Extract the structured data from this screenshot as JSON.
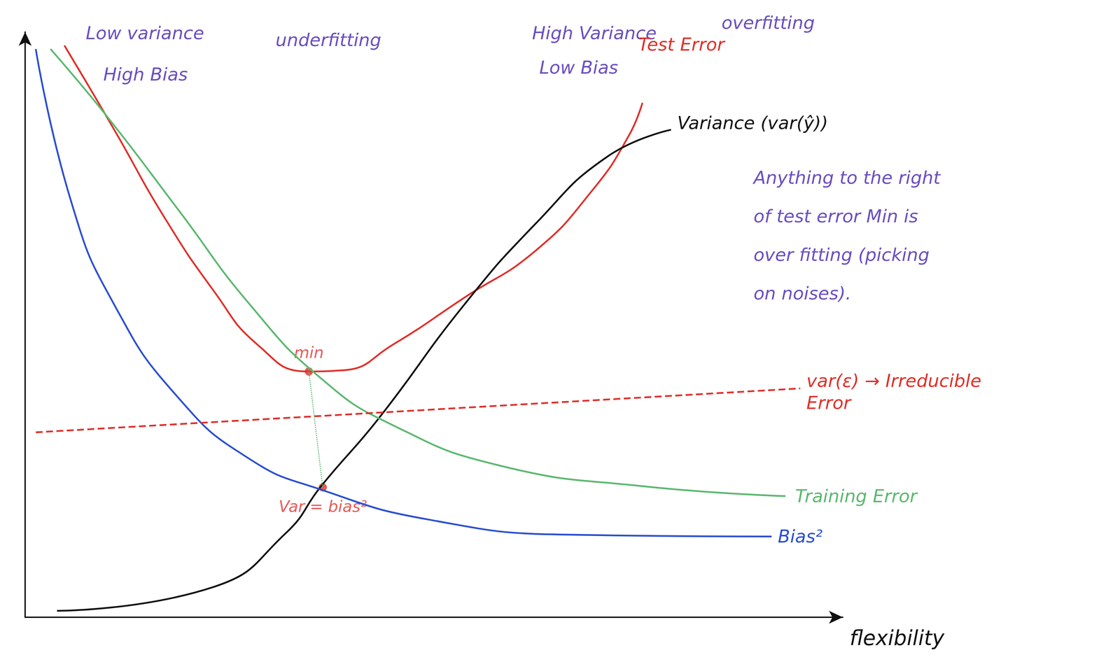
{
  "chart_data": {
    "type": "line",
    "xlabel": "flexibility",
    "xlim": [
      0,
      100
    ],
    "ylim": [
      0,
      100
    ],
    "tick_labels": false,
    "grid": false,
    "series": [
      {
        "name": "Test Error",
        "color": "#e0302a",
        "x": [
          4.8,
          10.9,
          17.0,
          23.1,
          28.4,
          34.5,
          38.9,
          45.0,
          53.7,
          62.4,
          69.4,
          73.8,
          75.5
        ],
        "values": [
          97.7,
          83.3,
          68.4,
          55.7,
          46.6,
          42.0,
          42.2,
          46.6,
          54.6,
          62.6,
          73.0,
          82.2,
          87.9
        ]
      },
      {
        "name": "Variance (var(ŷ))",
        "color": "#111111",
        "x": [
          3.9,
          23.1,
          31.9,
          36.2,
          43.2,
          53.7,
          62.4,
          71.2,
          79.0
        ],
        "values": [
          1.1,
          5.2,
          14.4,
          22.4,
          33.9,
          53.4,
          67.2,
          78.7,
          83.3
        ]
      },
      {
        "name": "Bias²",
        "color": "#2a4fd0",
        "x": [
          1.3,
          5.7,
          10.9,
          18.8,
          27.5,
          36.2,
          49.3,
          66.8,
          91.3
        ],
        "values": [
          97.1,
          70.7,
          53.4,
          37.4,
          27.0,
          21.8,
          16.7,
          14.1,
          13.8
        ]
      },
      {
        "name": "Training Error",
        "color": "#5cb870",
        "x": [
          3.1,
          10.0,
          18.8,
          27.5,
          36.2,
          45.0,
          58.1,
          75.5,
          93.0
        ],
        "values": [
          97.1,
          85.6,
          69.5,
          53.4,
          40.8,
          32.8,
          25.9,
          22.4,
          20.7
        ]
      },
      {
        "name": "var(ε) → Irreducible Error",
        "color": "#e0302a",
        "line_style": "dashed",
        "x": [
          1.3,
          94.8
        ],
        "values": [
          31.6,
          39.1
        ]
      }
    ],
    "points": [
      {
        "label": "min",
        "x": 34.7,
        "y": 42.0,
        "color": "#e0302a"
      },
      {
        "label": "Var = bias²",
        "x": 36.4,
        "y": 22.2,
        "color": "#e0302a"
      }
    ],
    "annotations": [
      {
        "text": "Low variance",
        "color": "#6a4fc0"
      },
      {
        "text": "High Bias",
        "color": "#6a4fc0"
      },
      {
        "text": "underfitting",
        "color": "#6a4fc0"
      },
      {
        "text": "High Variance",
        "color": "#6a4fc0"
      },
      {
        "text": "overfitting",
        "color": "#6a4fc0"
      },
      {
        "text": "Low Bias",
        "color": "#6a4fc0"
      },
      {
        "text": "Anything to the right\nof test error Min is\nover fitting (picking\non noises).",
        "color": "#6a4fc0"
      }
    ]
  }
}
